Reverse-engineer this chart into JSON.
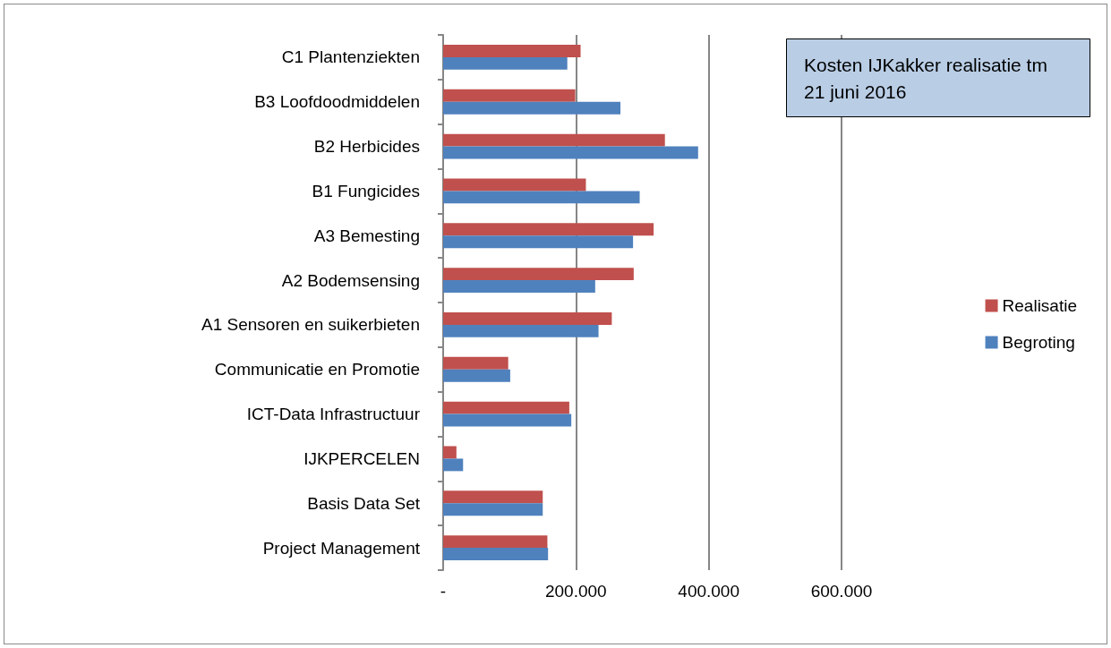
{
  "chart_data": {
    "type": "bar",
    "orientation": "horizontal",
    "title": "Kosten IJKakker realisatie tm 21 juni 2016",
    "categories": [
      "C1 Plantenziekten",
      "B3 Loofdoodmiddelen",
      "B2 Herbicides",
      "B1 Fungicides",
      "A3 Bemesting",
      "A2 Bodemsensing",
      "A1 Sensoren en suikerbieten",
      "Communicatie en Promotie",
      "ICT-Data Infrastructuur",
      "IJKPERCELEN",
      "Basis Data Set",
      "Project Management"
    ],
    "series": [
      {
        "name": "Realisatie",
        "color": "#c0504d",
        "values": [
          207000,
          199000,
          334000,
          215000,
          317000,
          287000,
          254000,
          98000,
          190000,
          20000,
          150000,
          157000
        ]
      },
      {
        "name": "Begroting",
        "color": "#4f81bd",
        "values": [
          187000,
          267000,
          384000,
          296000,
          286000,
          229000,
          234000,
          101000,
          193000,
          30000,
          150000,
          158000
        ]
      }
    ],
    "xlim": [
      0,
      600000
    ],
    "xticks": [
      {
        "value": 0,
        "label": "-"
      },
      {
        "value": 200000,
        "label": "200.000"
      },
      {
        "value": 400000,
        "label": "400.000"
      },
      {
        "value": 600000,
        "label": "600.000"
      }
    ],
    "grid": "x",
    "legend": "right"
  }
}
